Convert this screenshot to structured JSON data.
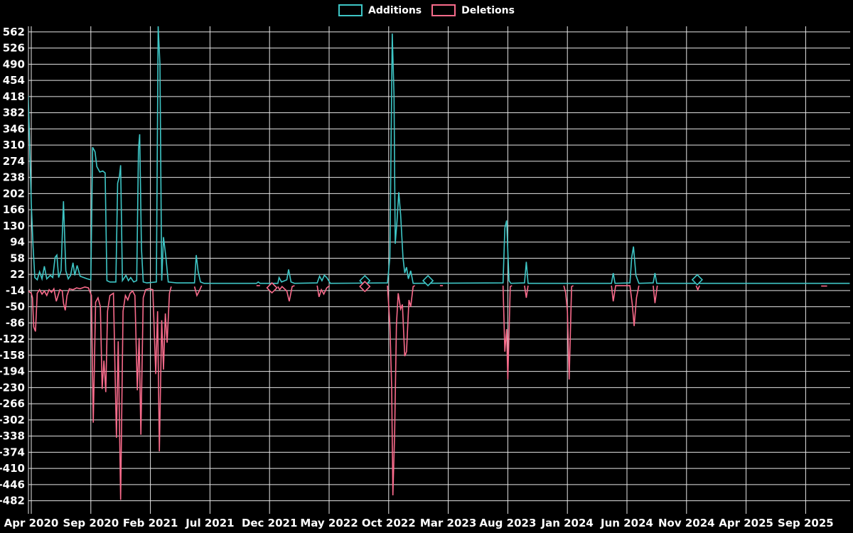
{
  "legend": {
    "additions_label": "Additions",
    "deletions_label": "Deletions"
  },
  "colors": {
    "background": "#000000",
    "grid": "#e6e6e6",
    "text": "#ffffff",
    "additions": "#3ec6c6",
    "deletions": "#f96b8b"
  },
  "chart_data": {
    "type": "line",
    "title": "",
    "grid": true,
    "legend_position": "top-center",
    "x_axis": {
      "unit": "months since Apr 2020",
      "tick_interval_months": 5,
      "range_months": [
        0,
        65
      ],
      "tick_labels": [
        "Apr 2020",
        "Sep 2020",
        "Feb 2021",
        "Jul 2021",
        "Dec 2021",
        "May 2022",
        "Oct 2022",
        "Mar 2023",
        "Aug 2023",
        "Jan 2024",
        "Jun 2024",
        "Nov 2024",
        "Apr 2025",
        "Sep 2025"
      ]
    },
    "y_axis": {
      "min": -482,
      "max": 562,
      "tick_step": 36,
      "tick_labels": [
        562,
        526,
        490,
        454,
        418,
        382,
        346,
        310,
        274,
        238,
        202,
        166,
        130,
        94,
        58,
        22,
        -14,
        -50,
        -86,
        -122,
        -158,
        -194,
        -230,
        -266,
        -302,
        -338,
        -374,
        -410,
        -446,
        -482
      ]
    },
    "series": [
      {
        "name": "Additions",
        "color": "#3ec6c6",
        "segments": [
          [
            [
              -0.25,
              420
            ],
            [
              0.0,
              180
            ],
            [
              0.15,
              85
            ],
            [
              0.3,
              15
            ],
            [
              0.5,
              10
            ],
            [
              0.7,
              28
            ],
            [
              0.9,
              12
            ],
            [
              1.1,
              40
            ],
            [
              1.3,
              12
            ],
            [
              1.6,
              20
            ],
            [
              1.8,
              15
            ],
            [
              2.0,
              60
            ],
            [
              2.15,
              65
            ],
            [
              2.3,
              15
            ],
            [
              2.5,
              30
            ],
            [
              2.7,
              185
            ],
            [
              2.9,
              30
            ],
            [
              3.1,
              12
            ],
            [
              3.3,
              20
            ],
            [
              3.5,
              48
            ],
            [
              3.65,
              20
            ],
            [
              3.85,
              42
            ],
            [
              4.1,
              18
            ],
            [
              4.4,
              15
            ],
            [
              4.7,
              12
            ],
            [
              5.0,
              10
            ],
            [
              5.15,
              305
            ],
            [
              5.35,
              295
            ],
            [
              5.5,
              262
            ],
            [
              5.75,
              250
            ],
            [
              6.0,
              252
            ],
            [
              6.2,
              248
            ],
            [
              6.35,
              8
            ],
            [
              6.6,
              5
            ],
            [
              7.1,
              5
            ],
            [
              7.25,
              225
            ],
            [
              7.4,
              240
            ],
            [
              7.5,
              265
            ],
            [
              7.65,
              8
            ],
            [
              7.95,
              20
            ],
            [
              8.15,
              8
            ],
            [
              8.35,
              15
            ],
            [
              8.6,
              5
            ],
            [
              8.85,
              8
            ],
            [
              9.0,
              300
            ],
            [
              9.1,
              334
            ],
            [
              9.25,
              80
            ],
            [
              9.4,
              5
            ],
            [
              9.7,
              3
            ],
            [
              10.5,
              5
            ],
            [
              10.65,
              575
            ],
            [
              10.8,
              490
            ],
            [
              10.95,
              8
            ],
            [
              11.1,
              105
            ],
            [
              11.3,
              60
            ],
            [
              11.5,
              5
            ],
            [
              12.2,
              3
            ],
            [
              12.35,
              3
            ],
            [
              13.7,
              3
            ],
            [
              13.85,
              65
            ],
            [
              14.0,
              30
            ],
            [
              14.2,
              5
            ],
            [
              14.5,
              2
            ],
            [
              18.9,
              2
            ],
            [
              19.05,
              5
            ],
            [
              19.2,
              2
            ],
            [
              20.7,
              2
            ],
            [
              20.8,
              15
            ],
            [
              21.0,
              5
            ],
            [
              21.45,
              10
            ],
            [
              21.6,
              33
            ],
            [
              21.8,
              5
            ],
            [
              22.1,
              2
            ],
            [
              24.0,
              3
            ],
            [
              24.2,
              18
            ],
            [
              24.4,
              8
            ],
            [
              24.6,
              20
            ],
            [
              24.8,
              15
            ],
            [
              25.1,
              2
            ],
            [
              29.9,
              3
            ],
            [
              30.1,
              60
            ],
            [
              30.3,
              558
            ],
            [
              30.45,
              420
            ],
            [
              30.55,
              90
            ],
            [
              30.7,
              140
            ],
            [
              30.85,
              205
            ],
            [
              31.0,
              155
            ],
            [
              31.2,
              60
            ],
            [
              31.35,
              25
            ],
            [
              31.5,
              38
            ],
            [
              31.65,
              12
            ],
            [
              31.85,
              30
            ],
            [
              32.05,
              2
            ],
            [
              39.6,
              3
            ],
            [
              39.75,
              125
            ],
            [
              39.9,
              142
            ],
            [
              40.1,
              8
            ],
            [
              40.25,
              2
            ],
            [
              41.4,
              3
            ],
            [
              41.55,
              50
            ],
            [
              41.7,
              2
            ],
            [
              48.7,
              2
            ],
            [
              48.85,
              25
            ],
            [
              49.0,
              2
            ],
            [
              50.25,
              3
            ],
            [
              50.4,
              60
            ],
            [
              50.55,
              84
            ],
            [
              50.75,
              20
            ],
            [
              51.0,
              2
            ],
            [
              52.2,
              3
            ],
            [
              52.35,
              25
            ],
            [
              52.5,
              2
            ],
            [
              68.7,
              2
            ]
          ]
        ],
        "markers": [
          [
            28.0,
            8
          ],
          [
            33.3,
            8
          ],
          [
            55.9,
            10
          ]
        ]
      },
      {
        "name": "Deletions",
        "color": "#f96b8b",
        "segments": [
          [
            [
              -0.25,
              -15
            ],
            [
              0.0,
              -20
            ],
            [
              0.1,
              -30
            ],
            [
              0.2,
              -95
            ],
            [
              0.35,
              -105
            ],
            [
              0.5,
              -20
            ],
            [
              0.7,
              -12
            ],
            [
              0.9,
              -22
            ],
            [
              1.1,
              -15
            ],
            [
              1.3,
              -25
            ],
            [
              1.5,
              -12
            ],
            [
              1.7,
              -18
            ],
            [
              1.9,
              -10
            ],
            [
              2.1,
              -38
            ],
            [
              2.4,
              -12
            ],
            [
              2.6,
              -15
            ],
            [
              2.7,
              -42
            ],
            [
              2.85,
              -58
            ],
            [
              3.0,
              -25
            ],
            [
              3.2,
              -10
            ],
            [
              3.5,
              -12
            ],
            [
              3.8,
              -8
            ],
            [
              4.1,
              -10
            ],
            [
              4.5,
              -6
            ],
            [
              4.8,
              -8
            ],
            [
              5.05,
              -25
            ],
            [
              5.2,
              -308
            ],
            [
              5.4,
              -40
            ],
            [
              5.6,
              -30
            ],
            [
              5.8,
              -50
            ],
            [
              5.95,
              -233
            ],
            [
              6.1,
              -170
            ],
            [
              6.25,
              -240
            ],
            [
              6.4,
              -60
            ],
            [
              6.6,
              -25
            ],
            [
              6.9,
              -20
            ],
            [
              7.15,
              -342
            ],
            [
              7.3,
              -127
            ],
            [
              7.5,
              -480
            ],
            [
              7.7,
              -60
            ],
            [
              7.9,
              -25
            ],
            [
              8.1,
              -35
            ],
            [
              8.3,
              -20
            ],
            [
              8.5,
              -15
            ],
            [
              8.7,
              -25
            ],
            [
              8.9,
              -236
            ],
            [
              9.05,
              -120
            ],
            [
              9.2,
              -335
            ],
            [
              9.4,
              -30
            ],
            [
              9.6,
              -12
            ],
            [
              9.9,
              -10
            ],
            [
              10.2,
              -12
            ],
            [
              10.45,
              -200
            ],
            [
              10.6,
              -60
            ],
            [
              10.75,
              -372
            ],
            [
              10.95,
              -80
            ],
            [
              11.1,
              -190
            ],
            [
              11.25,
              -65
            ],
            [
              11.4,
              -130
            ],
            [
              11.6,
              -20
            ],
            [
              11.75,
              -5
            ]
          ],
          [
            [
              13.7,
              -5
            ],
            [
              13.9,
              -25
            ],
            [
              14.1,
              -15
            ],
            [
              14.3,
              -3
            ]
          ],
          [
            [
              18.9,
              -3
            ],
            [
              19.2,
              -3
            ]
          ],
          [
            [
              20.7,
              -5
            ],
            [
              20.85,
              -12
            ],
            [
              21.05,
              -5
            ],
            [
              21.45,
              -15
            ],
            [
              21.65,
              -38
            ],
            [
              21.9,
              -5
            ],
            [
              22.1,
              -3
            ]
          ],
          [
            [
              24.0,
              -3
            ],
            [
              24.15,
              -28
            ],
            [
              24.35,
              -12
            ],
            [
              24.55,
              -22
            ],
            [
              24.8,
              -8
            ],
            [
              25.05,
              -3
            ]
          ],
          [
            [
              29.9,
              -3
            ],
            [
              30.1,
              -90
            ],
            [
              30.25,
              -230
            ],
            [
              30.35,
              -470
            ],
            [
              30.5,
              -330
            ],
            [
              30.65,
              -90
            ],
            [
              30.8,
              -20
            ],
            [
              31.0,
              -55
            ],
            [
              31.15,
              -45
            ],
            [
              31.35,
              -160
            ],
            [
              31.5,
              -150
            ],
            [
              31.7,
              -35
            ],
            [
              31.85,
              -50
            ],
            [
              32.05,
              -5
            ],
            [
              32.2,
              -3
            ]
          ],
          [
            [
              34.3,
              -3
            ],
            [
              34.55,
              -3
            ]
          ],
          [
            [
              39.6,
              -3
            ],
            [
              39.75,
              -150
            ],
            [
              39.9,
              -100
            ],
            [
              40.0,
              -212
            ],
            [
              40.2,
              -5
            ],
            [
              40.35,
              -3
            ]
          ],
          [
            [
              41.4,
              -3
            ],
            [
              41.55,
              -30
            ],
            [
              41.7,
              -3
            ]
          ],
          [
            [
              44.7,
              -3
            ],
            [
              44.85,
              -18
            ],
            [
              45.0,
              -60
            ],
            [
              45.15,
              -212
            ],
            [
              45.35,
              -5
            ],
            [
              45.5,
              -3
            ]
          ],
          [
            [
              48.7,
              -3
            ],
            [
              48.85,
              -38
            ],
            [
              49.05,
              -3
            ],
            [
              50.25,
              -3
            ],
            [
              50.45,
              -45
            ],
            [
              50.6,
              -93
            ],
            [
              50.8,
              -30
            ],
            [
              51.0,
              -3
            ]
          ],
          [
            [
              52.2,
              -3
            ],
            [
              52.35,
              -42
            ],
            [
              52.55,
              -3
            ]
          ],
          [
            [
              55.8,
              -3
            ],
            [
              55.95,
              -12
            ],
            [
              56.1,
              -3
            ]
          ],
          [
            [
              66.3,
              -4
            ],
            [
              66.8,
              -4
            ]
          ]
        ],
        "markers": [
          [
            20.2,
            -8
          ],
          [
            28.0,
            -5
          ]
        ]
      }
    ]
  }
}
